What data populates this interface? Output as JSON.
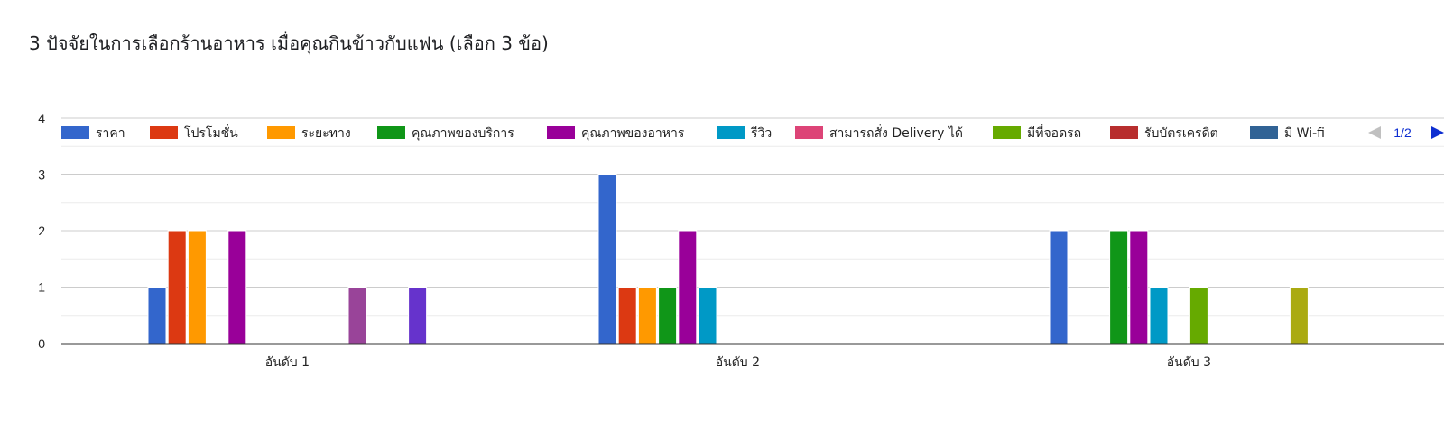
{
  "chart_title": "3 ปัจจัยในการเลือกร้านอาหาร เมื่อคุณกินข้าวกับแฟน (เลือก 3 ข้อ)",
  "legend_pager": {
    "page_text": "1/2",
    "prev_icon": "triangle-left-icon",
    "next_icon": "triangle-right-icon"
  },
  "chart_data": {
    "type": "bar",
    "title": "3 ปัจจัยในการเลือกร้านอาหาร เมื่อคุณกินข้าวกับแฟน (เลือก 3 ข้อ)",
    "xlabel": "",
    "ylabel": "",
    "ylim": [
      0,
      4
    ],
    "yticks": [
      "0",
      "1",
      "2",
      "3",
      "4"
    ],
    "grid": true,
    "legend_position": "top",
    "categories": [
      "อันดับ 1",
      "อันดับ 2",
      "อันดับ 3"
    ],
    "series": [
      {
        "name": "ราคา",
        "color": "#3366cc",
        "values": [
          1,
          3,
          2
        ]
      },
      {
        "name": "โปรโมชั่น",
        "color": "#dc3912",
        "values": [
          2,
          1,
          0
        ]
      },
      {
        "name": "ระยะทาง",
        "color": "#ff9900",
        "values": [
          2,
          1,
          0
        ]
      },
      {
        "name": "คุณภาพของบริการ",
        "color": "#109618",
        "values": [
          0,
          1,
          2
        ]
      },
      {
        "name": "คุณภาพของอาหาร",
        "color": "#990099",
        "values": [
          2,
          2,
          2
        ]
      },
      {
        "name": "รีวิว",
        "color": "#0099c6",
        "values": [
          0,
          1,
          1
        ]
      },
      {
        "name": "สามารถสั่ง Delivery ได้",
        "color": "#dd4477",
        "values": [
          0,
          0,
          0
        ]
      },
      {
        "name": "มีที่จอดรถ",
        "color": "#66aa00",
        "values": [
          0,
          0,
          1
        ]
      },
      {
        "name": "รับบัตรเครดิต",
        "color": "#b82e2e",
        "values": [
          0,
          0,
          0
        ]
      },
      {
        "name": "มี Wi-fi",
        "color": "#316395",
        "values": [
          0,
          0,
          0
        ]
      },
      {
        "name": null,
        "color": "#994499",
        "values": [
          1,
          0,
          0
        ]
      },
      {
        "name": null,
        "color": "#22aa99",
        "values": [
          0,
          0,
          0
        ]
      },
      {
        "name": null,
        "color": "#aaaa11",
        "values": [
          0,
          0,
          1
        ]
      },
      {
        "name": null,
        "color": "#6633cc",
        "values": [
          1,
          0,
          0
        ]
      }
    ]
  }
}
